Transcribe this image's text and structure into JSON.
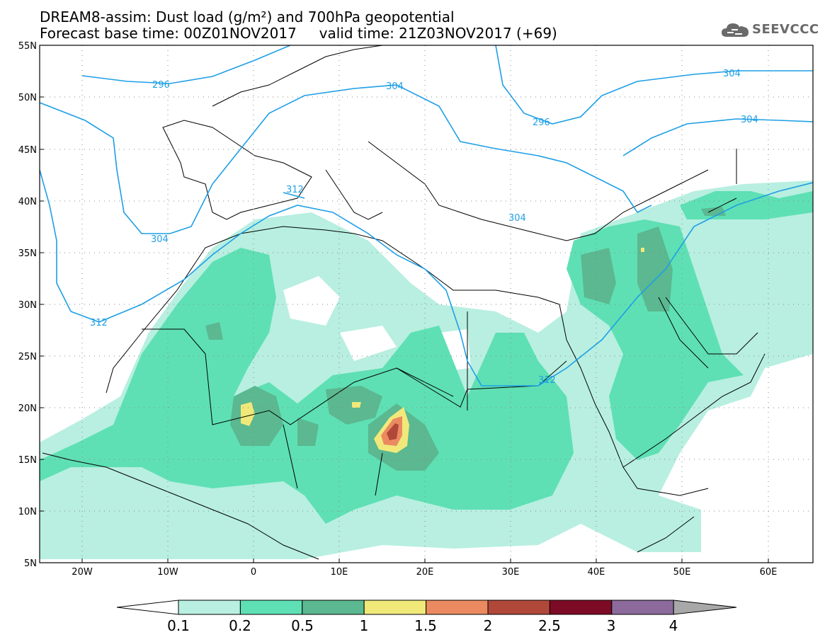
{
  "header": {
    "line1": "DREAM8-assim: Dust load (g/m²) and 700hPa geopotential",
    "line2": "Forecast base time: 00Z01NOV2017     valid time: 21Z03NOV2017 (+69)",
    "logo_text": "SEEVCCC"
  },
  "axes": {
    "lat_labels": [
      "55N",
      "50N",
      "45N",
      "40N",
      "35N",
      "30N",
      "25N",
      "20N",
      "15N",
      "10N",
      "5N"
    ],
    "lon_labels": [
      "20W",
      "10W",
      "0",
      "10E",
      "20E",
      "30E",
      "40E",
      "50E",
      "60E"
    ]
  },
  "contours": {
    "color": "#1e9fe6",
    "labels": [
      "296",
      "304",
      "296",
      "304",
      "312",
      "304",
      "304",
      "312",
      "312",
      "304"
    ]
  },
  "legend": {
    "levels": [
      "0.1",
      "0.2",
      "0.5",
      "1",
      "1.5",
      "2",
      "2.5",
      "3",
      "4"
    ],
    "colors": [
      "#ffffff",
      "#b8efe0",
      "#5ee0b4",
      "#5bb890",
      "#f0e97a",
      "#eb8a60",
      "#b0483a",
      "#7e0b26",
      "#8c6a9c",
      "#a8a8a8"
    ]
  }
}
